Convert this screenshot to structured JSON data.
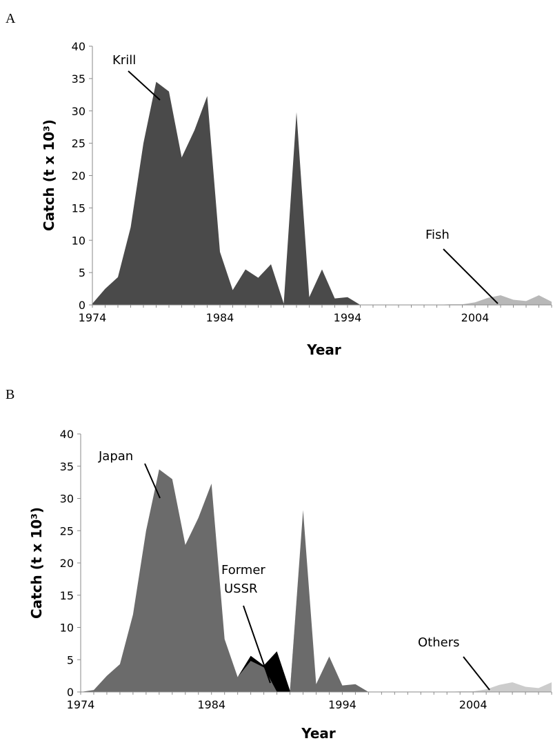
{
  "chart_data": [
    {
      "panel": "A",
      "type": "area",
      "stacked": true,
      "xlabel": "Year",
      "ylabel": "Catch (t x 10³)",
      "xlim": [
        1974,
        2010
      ],
      "ylim": [
        0,
        40
      ],
      "xticks": [
        "1974",
        "1984",
        "1994",
        "2004"
      ],
      "yticks": [
        "0",
        "5",
        "10",
        "15",
        "20",
        "25",
        "30",
        "35",
        "40"
      ],
      "grid": false,
      "x": [
        1974,
        1975,
        1976,
        1977,
        1978,
        1979,
        1980,
        1981,
        1982,
        1983,
        1984,
        1985,
        1986,
        1987,
        1988,
        1989,
        1990,
        1991,
        1992,
        1993,
        1994,
        1995,
        1996,
        1997,
        1998,
        1999,
        2000,
        2001,
        2002,
        2003,
        2004,
        2005,
        2006,
        2007,
        2008,
        2009,
        2010
      ],
      "series": [
        {
          "name": "Krill",
          "color": "#4a4a4a",
          "values": [
            0.2,
            2.5,
            4.3,
            12.0,
            25.0,
            34.5,
            33.0,
            22.8,
            27.0,
            32.3,
            8.2,
            2.3,
            5.5,
            4.2,
            6.3,
            0.2,
            29.8,
            1.2,
            5.5,
            1.0,
            1.2,
            0,
            0,
            0,
            0,
            0,
            0,
            0,
            0,
            0,
            0,
            0,
            0,
            0,
            0,
            0,
            0
          ]
        },
        {
          "name": "Fish",
          "color": "#b8b8b8",
          "values": [
            0,
            0,
            0,
            0,
            0,
            0,
            0,
            0,
            0,
            0,
            0,
            0,
            0,
            0,
            0,
            0,
            0,
            0,
            0,
            0,
            0,
            0,
            0,
            0,
            0,
            0,
            0,
            0,
            0.1,
            0.1,
            0.4,
            1.1,
            1.5,
            0.8,
            0.6,
            1.5,
            0.5
          ]
        }
      ],
      "annotations": [
        "Krill",
        "Fish"
      ]
    },
    {
      "panel": "B",
      "type": "area",
      "stacked": true,
      "xlabel": "Year",
      "ylabel": "Catch (t x 10³)",
      "xlim": [
        1974,
        2010
      ],
      "ylim": [
        0,
        40
      ],
      "xticks": [
        "1974",
        "1984",
        "1994",
        "2004"
      ],
      "yticks": [
        "0",
        "5",
        "10",
        "15",
        "20",
        "25",
        "30",
        "35",
        "40"
      ],
      "grid": false,
      "x": [
        1974,
        1975,
        1976,
        1977,
        1978,
        1979,
        1980,
        1981,
        1982,
        1983,
        1984,
        1985,
        1986,
        1987,
        1988,
        1989,
        1990,
        1991,
        1992,
        1993,
        1994,
        1995,
        1996,
        1997,
        1998,
        1999,
        2000,
        2001,
        2002,
        2003,
        2004,
        2005,
        2006,
        2007,
        2008,
        2009,
        2010
      ],
      "series": [
        {
          "name": "Japan",
          "color": "#6b6b6b",
          "values": [
            0,
            0.3,
            2.5,
            4.3,
            12.0,
            25.0,
            34.5,
            33.0,
            22.8,
            27.0,
            32.3,
            8.2,
            2.3,
            4.8,
            3.8,
            0,
            0,
            28.2,
            1.2,
            5.5,
            1.0,
            1.2,
            0,
            0,
            0,
            0,
            0,
            0,
            0,
            0,
            0,
            0,
            0,
            0,
            0,
            0,
            0
          ]
        },
        {
          "name": "Former USSR",
          "color": "#000000",
          "values": [
            0,
            0,
            0,
            0,
            0,
            0,
            0,
            0,
            0,
            0,
            0,
            0,
            0,
            0.8,
            0.3,
            6.3,
            0.2,
            0,
            0,
            0,
            0,
            0,
            0,
            0,
            0,
            0,
            0,
            0,
            0,
            0,
            0,
            0,
            0,
            0,
            0,
            0,
            0
          ]
        },
        {
          "name": "Others",
          "color": "#cccccc",
          "values": [
            0,
            0,
            0,
            0,
            0,
            0,
            0,
            0,
            0,
            0,
            0,
            0,
            0,
            0,
            0,
            0,
            0,
            0,
            0,
            0,
            0,
            0,
            0,
            0,
            0,
            0,
            0,
            0,
            0,
            0.1,
            0.1,
            0.4,
            1.1,
            1.5,
            0.8,
            0.6,
            1.5
          ]
        }
      ],
      "annotations": [
        "Japan",
        "Former\nUSSR",
        "Others"
      ]
    }
  ]
}
